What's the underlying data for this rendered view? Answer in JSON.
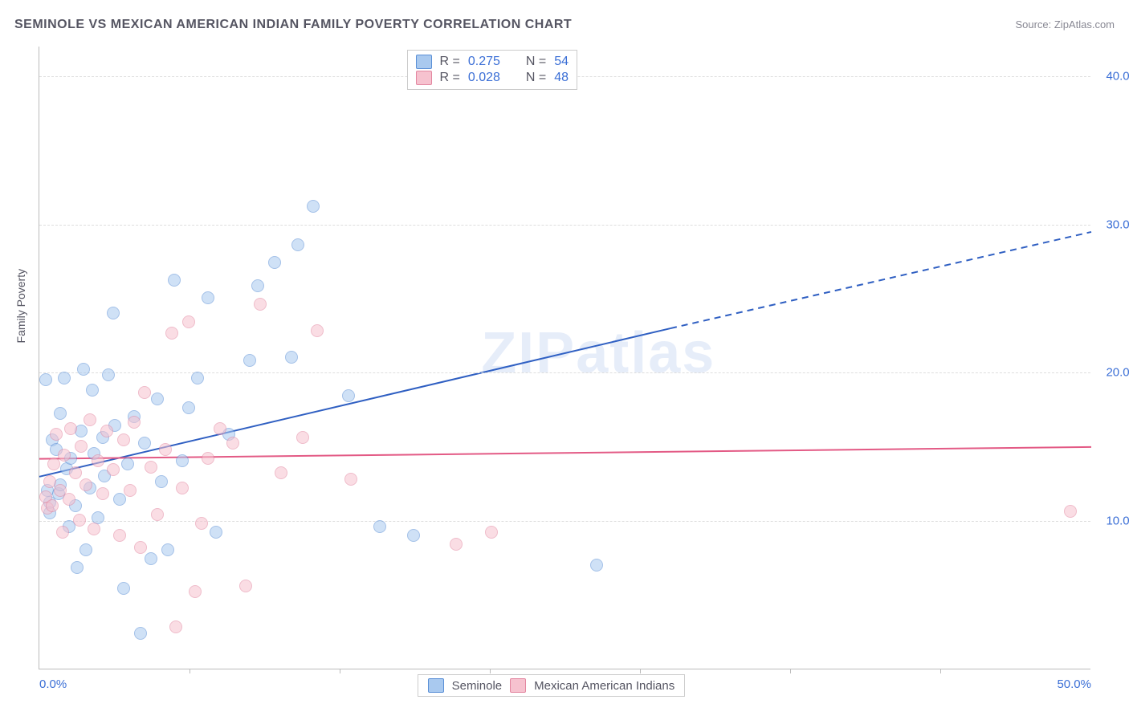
{
  "title": "SEMINOLE VS MEXICAN AMERICAN INDIAN FAMILY POVERTY CORRELATION CHART",
  "source": "Source: ZipAtlas.com",
  "y_axis_label": "Family Poverty",
  "watermark": "ZIPatlas",
  "chart": {
    "type": "scatter",
    "background_color": "#ffffff",
    "grid_color": "#dddddd",
    "axis_color": "#bbbbbb",
    "xlim": [
      0,
      50
    ],
    "ylim": [
      0,
      42
    ],
    "x_ticks": [
      0,
      50
    ],
    "x_tick_labels": [
      "0.0%",
      "50.0%"
    ],
    "x_minor_ticks": [
      7.14,
      14.28,
      21.42,
      28.56,
      35.7,
      42.84
    ],
    "y_ticks": [
      10,
      20,
      30,
      40
    ],
    "y_tick_labels": [
      "10.0%",
      "20.0%",
      "30.0%",
      "40.0%"
    ],
    "tick_label_color": "#3b6fd6",
    "point_radius": 8,
    "point_opacity": 0.55,
    "series": [
      {
        "name": "Seminole",
        "fill": "#a9c9ef",
        "stroke": "#5a8fd6",
        "trend_color": "#2f5fc2",
        "trend_width": 2,
        "trend_start": [
          0,
          13.0
        ],
        "trend_solid_end": [
          30,
          23.0
        ],
        "trend_dash_end": [
          50,
          29.5
        ],
        "r": 0.275,
        "n": 54,
        "points": [
          [
            0.3,
            19.5
          ],
          [
            0.4,
            12.0
          ],
          [
            0.5,
            11.2
          ],
          [
            0.5,
            10.5
          ],
          [
            0.6,
            15.4
          ],
          [
            0.8,
            14.8
          ],
          [
            0.9,
            11.8
          ],
          [
            1.0,
            12.4
          ],
          [
            1.0,
            17.2
          ],
          [
            1.2,
            19.6
          ],
          [
            1.3,
            13.5
          ],
          [
            1.4,
            9.6
          ],
          [
            1.5,
            14.2
          ],
          [
            1.7,
            11.0
          ],
          [
            1.8,
            6.8
          ],
          [
            2.0,
            16.0
          ],
          [
            2.1,
            20.2
          ],
          [
            2.2,
            8.0
          ],
          [
            2.4,
            12.2
          ],
          [
            2.5,
            18.8
          ],
          [
            2.6,
            14.5
          ],
          [
            2.8,
            10.2
          ],
          [
            3.0,
            15.6
          ],
          [
            3.1,
            13.0
          ],
          [
            3.3,
            19.8
          ],
          [
            3.5,
            24.0
          ],
          [
            3.6,
            16.4
          ],
          [
            3.8,
            11.4
          ],
          [
            4.0,
            5.4
          ],
          [
            4.2,
            13.8
          ],
          [
            4.5,
            17.0
          ],
          [
            4.8,
            2.4
          ],
          [
            5.0,
            15.2
          ],
          [
            5.3,
            7.4
          ],
          [
            5.6,
            18.2
          ],
          [
            5.8,
            12.6
          ],
          [
            6.1,
            8.0
          ],
          [
            6.4,
            26.2
          ],
          [
            6.8,
            14.0
          ],
          [
            7.1,
            17.6
          ],
          [
            7.5,
            19.6
          ],
          [
            8.0,
            25.0
          ],
          [
            8.4,
            9.2
          ],
          [
            9.0,
            15.8
          ],
          [
            10.0,
            20.8
          ],
          [
            10.4,
            25.8
          ],
          [
            11.2,
            27.4
          ],
          [
            12.0,
            21.0
          ],
          [
            12.3,
            28.6
          ],
          [
            13.0,
            31.2
          ],
          [
            14.7,
            18.4
          ],
          [
            16.2,
            9.6
          ],
          [
            17.8,
            9.0
          ],
          [
            26.5,
            7.0
          ]
        ]
      },
      {
        "name": "Mexican American Indians",
        "fill": "#f6c2cf",
        "stroke": "#e386a0",
        "trend_color": "#e35a85",
        "trend_width": 2,
        "trend_start": [
          0,
          14.2
        ],
        "trend_solid_end": [
          50,
          15.0
        ],
        "trend_dash_end": null,
        "r": 0.028,
        "n": 48,
        "points": [
          [
            0.3,
            11.6
          ],
          [
            0.4,
            10.8
          ],
          [
            0.5,
            12.6
          ],
          [
            0.6,
            11.0
          ],
          [
            0.7,
            13.8
          ],
          [
            0.8,
            15.8
          ],
          [
            1.0,
            12.0
          ],
          [
            1.1,
            9.2
          ],
          [
            1.2,
            14.4
          ],
          [
            1.4,
            11.4
          ],
          [
            1.5,
            16.2
          ],
          [
            1.7,
            13.2
          ],
          [
            1.9,
            10.0
          ],
          [
            2.0,
            15.0
          ],
          [
            2.2,
            12.4
          ],
          [
            2.4,
            16.8
          ],
          [
            2.6,
            9.4
          ],
          [
            2.8,
            14.0
          ],
          [
            3.0,
            11.8
          ],
          [
            3.2,
            16.0
          ],
          [
            3.5,
            13.4
          ],
          [
            3.8,
            9.0
          ],
          [
            4.0,
            15.4
          ],
          [
            4.3,
            12.0
          ],
          [
            4.5,
            16.6
          ],
          [
            4.8,
            8.2
          ],
          [
            5.0,
            18.6
          ],
          [
            5.3,
            13.6
          ],
          [
            5.6,
            10.4
          ],
          [
            6.0,
            14.8
          ],
          [
            6.3,
            22.6
          ],
          [
            6.5,
            2.8
          ],
          [
            6.8,
            12.2
          ],
          [
            7.1,
            23.4
          ],
          [
            7.4,
            5.2
          ],
          [
            7.7,
            9.8
          ],
          [
            8.0,
            14.2
          ],
          [
            8.6,
            16.2
          ],
          [
            9.2,
            15.2
          ],
          [
            9.8,
            5.6
          ],
          [
            10.5,
            24.6
          ],
          [
            11.5,
            13.2
          ],
          [
            12.5,
            15.6
          ],
          [
            13.2,
            22.8
          ],
          [
            14.8,
            12.8
          ],
          [
            19.8,
            8.4
          ],
          [
            21.5,
            9.2
          ],
          [
            49.0,
            10.6
          ]
        ]
      }
    ]
  },
  "legend_top": {
    "rows": [
      {
        "swatch_fill": "#a9c9ef",
        "swatch_stroke": "#5a8fd6",
        "r_label": "R =",
        "r_val": "0.275",
        "n_label": "N =",
        "n_val": "54"
      },
      {
        "swatch_fill": "#f6c2cf",
        "swatch_stroke": "#e386a0",
        "r_label": "R =",
        "r_val": "0.028",
        "n_label": "N =",
        "n_val": "48"
      }
    ]
  },
  "legend_bottom": {
    "items": [
      {
        "swatch_fill": "#a9c9ef",
        "swatch_stroke": "#5a8fd6",
        "label": "Seminole"
      },
      {
        "swatch_fill": "#f6c2cf",
        "swatch_stroke": "#e386a0",
        "label": "Mexican American Indians"
      }
    ]
  }
}
